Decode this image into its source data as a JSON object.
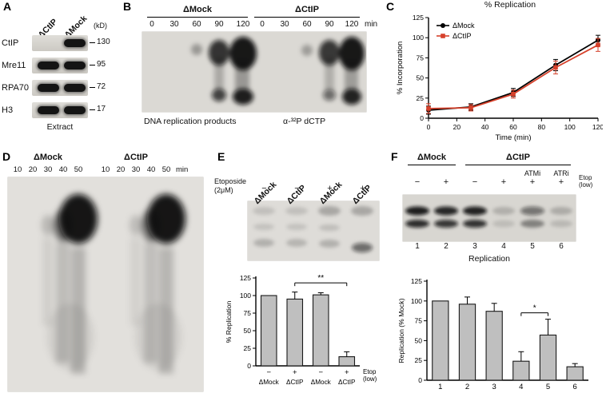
{
  "panelA": {
    "label": "A",
    "lane_labels": [
      "ΔCtIP",
      "ΔMock"
    ],
    "kd_label": "(kD)",
    "rows": [
      {
        "name": "CtIP",
        "marker": "130",
        "bands": [
          false,
          true
        ]
      },
      {
        "name": "Mre11",
        "marker": "95",
        "bands": [
          true,
          true
        ]
      },
      {
        "name": "RPA70",
        "marker": "72",
        "bands": [
          true,
          true
        ]
      },
      {
        "name": "H3",
        "marker": "17",
        "bands": [
          true,
          true
        ]
      }
    ],
    "footer": "Extract"
  },
  "panelB": {
    "label": "B",
    "groups": [
      "ΔMock",
      "ΔCtIP"
    ],
    "time_points": [
      "0",
      "30",
      "60",
      "90",
      "120"
    ],
    "time_unit": "min",
    "footer_left": "DNA replication products",
    "footer_right": "α-³²P dCTP"
  },
  "panelC": {
    "label": "C"
  },
  "panelD": {
    "label": "D",
    "groups": [
      "ΔMock",
      "ΔCtIP"
    ],
    "time_points": [
      "10",
      "20",
      "30",
      "40",
      "50"
    ],
    "time_unit": "min"
  },
  "panelE": {
    "label": "E",
    "lane_labels": [
      "ΔMock",
      "ΔCtIP",
      "ΔMock",
      "ΔCtIP"
    ],
    "treatment_label_1": "Etoposide",
    "treatment_label_2": "(2μM)",
    "treatment_values": [
      "−",
      "−",
      "+",
      "+"
    ]
  },
  "panelF": {
    "label": "F",
    "groups": [
      "ΔMock",
      "ΔCtIP"
    ],
    "inhibitor_labels": [
      "ATMi",
      "ATRi"
    ],
    "treatment_values": [
      "−",
      "+",
      "−",
      "+",
      "+",
      "+"
    ],
    "etop_label_1": "Etop",
    "etop_label_2": "(low)",
    "lane_numbers": [
      "1",
      "2",
      "3",
      "4",
      "5",
      "6"
    ],
    "gel_caption": "Replication"
  },
  "chart_data": [
    {
      "type": "line",
      "title": "% Replication",
      "xlabel": "Time (min)",
      "ylabel": "% Incorporation",
      "x": [
        0,
        30,
        60,
        90,
        120
      ],
      "xlim": [
        0,
        120
      ],
      "ylim": [
        0,
        125
      ],
      "xticks": [
        0,
        20,
        40,
        60,
        80,
        100,
        120
      ],
      "yticks": [
        0,
        25,
        50,
        75,
        100,
        125
      ],
      "grid": false,
      "legend_position": "top-left",
      "series": [
        {
          "name": "ΔMock",
          "color": "#000000",
          "marker": "circle",
          "values": [
            10,
            14,
            32,
            66,
            97
          ],
          "errors": [
            5,
            4,
            5,
            7,
            6
          ]
        },
        {
          "name": "ΔCtIP",
          "color": "#d6412b",
          "marker": "square",
          "values": [
            12,
            13,
            30,
            63,
            91
          ],
          "errors": [
            6,
            4,
            5,
            8,
            8
          ]
        }
      ]
    },
    {
      "type": "bar",
      "ylabel": "% Replication",
      "ylim": [
        0,
        125
      ],
      "yticks": [
        0,
        25,
        50,
        75,
        100,
        125
      ],
      "categories": [
        "−",
        "+",
        "−",
        "+"
      ],
      "group_labels": [
        "ΔMock",
        "ΔCtIP",
        "ΔMock",
        "ΔCtIP"
      ],
      "side_label": [
        "Etop",
        "(low)"
      ],
      "values": [
        100,
        95,
        101,
        13
      ],
      "errors": [
        0,
        10,
        3,
        7
      ],
      "bar_color": "#bfbfbf",
      "significance": {
        "from": 1,
        "to": 3,
        "y": 118,
        "label": "**"
      }
    },
    {
      "type": "bar",
      "ylabel": "Replication (% Mock)",
      "ylim": [
        0,
        125
      ],
      "yticks": [
        0,
        25,
        50,
        75,
        100,
        125
      ],
      "categories": [
        "1",
        "2",
        "3",
        "4",
        "5",
        "6"
      ],
      "values": [
        100,
        96,
        87,
        24,
        57,
        17
      ],
      "errors": [
        0,
        9,
        10,
        12,
        20,
        4
      ],
      "bar_color": "#bfbfbf",
      "significance": {
        "from": 3,
        "to": 4,
        "y": 85,
        "label": "*"
      }
    }
  ]
}
